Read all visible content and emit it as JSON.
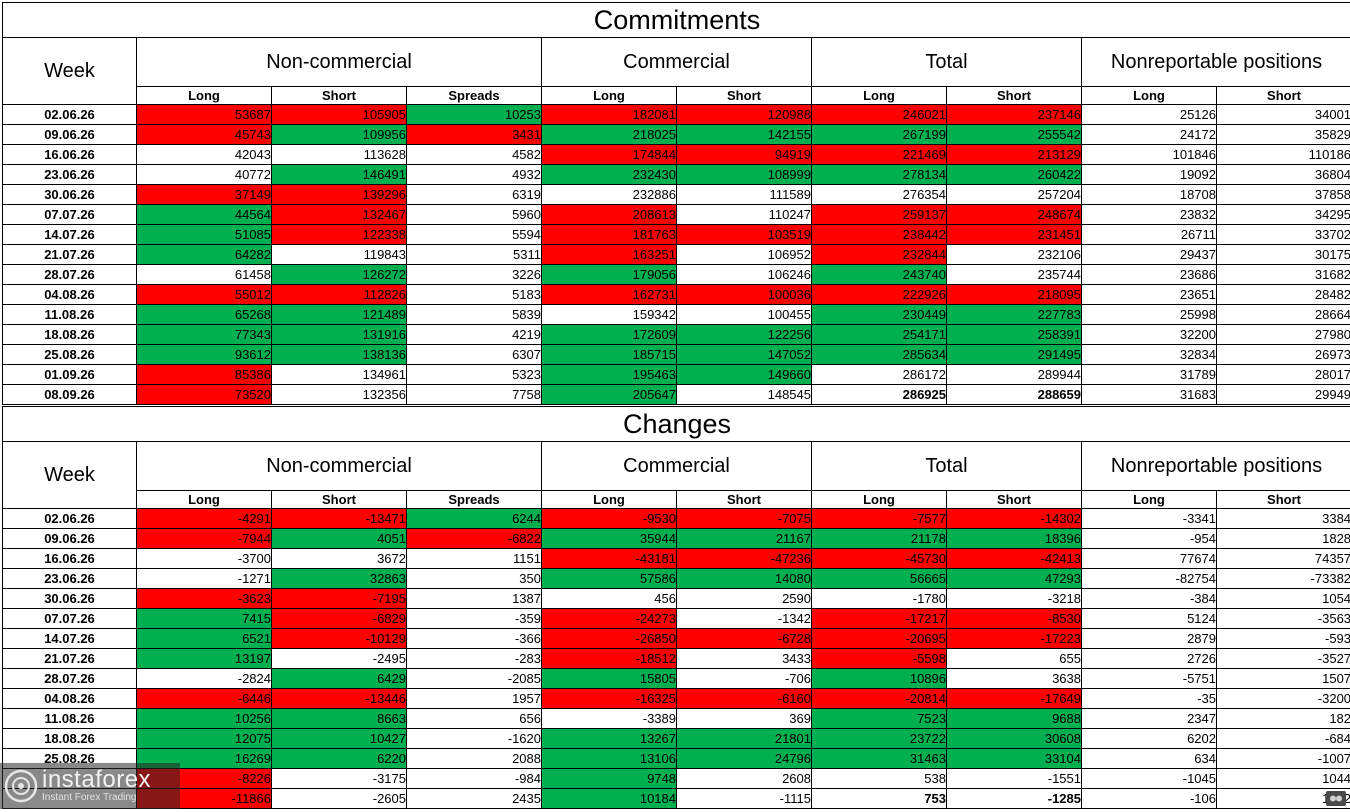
{
  "groups": [
    "Non-commercial",
    "Commercial",
    "Total",
    "Nonreportable positions"
  ],
  "labels": {
    "week": "Week",
    "long": "Long",
    "short": "Short",
    "spreads": "Spreads"
  },
  "colors": {
    "up": "#00b050",
    "down": "#ff0000",
    "none": "#ffffff"
  },
  "watermark": {
    "name": "instaforex",
    "tagline": "Instant Forex Trading"
  },
  "commitments": {
    "title": "Commitments",
    "rows": [
      {
        "week": "02.06.26",
        "values": [
          53687,
          105905,
          10253,
          182081,
          120988,
          246021,
          237146,
          25126,
          34001
        ],
        "colors": [
          "r",
          "r",
          "g",
          "r",
          "r",
          "r",
          "r",
          "n",
          "n"
        ]
      },
      {
        "week": "09.06.26",
        "values": [
          45743,
          109956,
          3431,
          218025,
          142155,
          267199,
          255542,
          24172,
          35829
        ],
        "colors": [
          "r",
          "g",
          "r",
          "g",
          "g",
          "g",
          "g",
          "n",
          "n"
        ]
      },
      {
        "week": "16.06.26",
        "values": [
          42043,
          113628,
          4582,
          174844,
          94919,
          221469,
          213129,
          101846,
          110186
        ],
        "colors": [
          "n",
          "n",
          "n",
          "r",
          "r",
          "r",
          "r",
          "n",
          "n"
        ]
      },
      {
        "week": "23.06.26",
        "values": [
          40772,
          146491,
          4932,
          232430,
          108999,
          278134,
          260422,
          19092,
          36804
        ],
        "colors": [
          "n",
          "g",
          "n",
          "g",
          "g",
          "g",
          "g",
          "n",
          "n"
        ]
      },
      {
        "week": "30.06.26",
        "values": [
          37149,
          139296,
          6319,
          232886,
          111589,
          276354,
          257204,
          18708,
          37858
        ],
        "colors": [
          "r",
          "r",
          "n",
          "n",
          "n",
          "n",
          "n",
          "n",
          "n"
        ]
      },
      {
        "week": "07.07.26",
        "values": [
          44564,
          132467,
          5960,
          208613,
          110247,
          259137,
          248674,
          23832,
          34295
        ],
        "colors": [
          "g",
          "r",
          "n",
          "r",
          "n",
          "r",
          "r",
          "n",
          "n"
        ]
      },
      {
        "week": "14.07.26",
        "values": [
          51085,
          122338,
          5594,
          181763,
          103519,
          238442,
          231451,
          26711,
          33702
        ],
        "colors": [
          "g",
          "r",
          "n",
          "r",
          "r",
          "r",
          "r",
          "n",
          "n"
        ]
      },
      {
        "week": "21.07.26",
        "values": [
          64282,
          119843,
          5311,
          163251,
          106952,
          232844,
          232106,
          29437,
          30175
        ],
        "colors": [
          "g",
          "n",
          "n",
          "r",
          "n",
          "r",
          "n",
          "n",
          "n"
        ]
      },
      {
        "week": "28.07.26",
        "values": [
          61458,
          126272,
          3226,
          179056,
          106246,
          243740,
          235744,
          23686,
          31682
        ],
        "colors": [
          "n",
          "g",
          "n",
          "g",
          "n",
          "g",
          "n",
          "n",
          "n"
        ]
      },
      {
        "week": "04.08.26",
        "values": [
          55012,
          112826,
          5183,
          162731,
          100036,
          222926,
          218095,
          23651,
          28482
        ],
        "colors": [
          "r",
          "r",
          "n",
          "r",
          "r",
          "r",
          "r",
          "n",
          "n"
        ]
      },
      {
        "week": "11.08.26",
        "values": [
          65268,
          121489,
          5839,
          159342,
          100455,
          230449,
          227783,
          25998,
          28664
        ],
        "colors": [
          "g",
          "g",
          "n",
          "n",
          "n",
          "g",
          "g",
          "n",
          "n"
        ]
      },
      {
        "week": "18.08.26",
        "values": [
          77343,
          131916,
          4219,
          172609,
          122256,
          254171,
          258391,
          32200,
          27980
        ],
        "colors": [
          "g",
          "g",
          "n",
          "g",
          "g",
          "g",
          "g",
          "n",
          "n"
        ]
      },
      {
        "week": "25.08.26",
        "values": [
          93612,
          138136,
          6307,
          185715,
          147052,
          285634,
          291495,
          32834,
          26973
        ],
        "colors": [
          "g",
          "g",
          "n",
          "g",
          "g",
          "g",
          "g",
          "n",
          "n"
        ]
      },
      {
        "week": "01.09.26",
        "values": [
          85386,
          134961,
          5323,
          195463,
          149660,
          286172,
          289944,
          31789,
          28017
        ],
        "colors": [
          "r",
          "n",
          "n",
          "g",
          "g",
          "n",
          "n",
          "n",
          "n"
        ]
      },
      {
        "week": "08.09.26",
        "values": [
          73520,
          132356,
          7758,
          205647,
          148545,
          286925,
          288659,
          31683,
          29949
        ],
        "colors": [
          "r",
          "n",
          "n",
          "g",
          "n",
          "b",
          "b",
          "n",
          "n"
        ]
      }
    ]
  },
  "changes": {
    "title": "Changes",
    "rows": [
      {
        "week": "02.06.26",
        "values": [
          -4291,
          -13471,
          6244,
          -9530,
          -7075,
          -7577,
          -14302,
          -3341,
          3384
        ],
        "colors": [
          "r",
          "r",
          "g",
          "r",
          "r",
          "r",
          "r",
          "n",
          "n"
        ]
      },
      {
        "week": "09.06.26",
        "values": [
          -7944,
          4051,
          -6822,
          35944,
          21167,
          21178,
          18396,
          -954,
          1828
        ],
        "colors": [
          "r",
          "g",
          "r",
          "g",
          "g",
          "g",
          "g",
          "n",
          "n"
        ]
      },
      {
        "week": "16.06.26",
        "values": [
          -3700,
          3672,
          1151,
          -43181,
          -47236,
          -45730,
          -42413,
          77674,
          74357
        ],
        "colors": [
          "n",
          "n",
          "n",
          "r",
          "r",
          "r",
          "r",
          "n",
          "n"
        ]
      },
      {
        "week": "23.06.26",
        "values": [
          -1271,
          32863,
          350,
          57586,
          14080,
          56665,
          47293,
          -82754,
          -73382
        ],
        "colors": [
          "n",
          "g",
          "n",
          "g",
          "g",
          "g",
          "g",
          "n",
          "n"
        ]
      },
      {
        "week": "30.06.26",
        "values": [
          -3623,
          -7195,
          1387,
          456,
          2590,
          -1780,
          -3218,
          -384,
          1054
        ],
        "colors": [
          "r",
          "r",
          "n",
          "n",
          "n",
          "n",
          "n",
          "n",
          "n"
        ]
      },
      {
        "week": "07.07.26",
        "values": [
          7415,
          -6829,
          -359,
          -24273,
          -1342,
          -17217,
          -8530,
          5124,
          -3563
        ],
        "colors": [
          "g",
          "r",
          "n",
          "r",
          "n",
          "r",
          "r",
          "n",
          "n"
        ]
      },
      {
        "week": "14.07.26",
        "values": [
          6521,
          -10129,
          -366,
          -26850,
          -6728,
          -20695,
          -17223,
          2879,
          -593
        ],
        "colors": [
          "g",
          "r",
          "n",
          "r",
          "r",
          "r",
          "r",
          "n",
          "n"
        ]
      },
      {
        "week": "21.07.26",
        "values": [
          13197,
          -2495,
          -283,
          -18512,
          3433,
          -5598,
          655,
          2726,
          -3527
        ],
        "colors": [
          "g",
          "n",
          "n",
          "r",
          "n",
          "r",
          "n",
          "n",
          "n"
        ]
      },
      {
        "week": "28.07.26",
        "values": [
          -2824,
          6429,
          -2085,
          15805,
          -706,
          10896,
          3638,
          -5751,
          1507
        ],
        "colors": [
          "n",
          "g",
          "n",
          "g",
          "n",
          "g",
          "n",
          "n",
          "n"
        ]
      },
      {
        "week": "04.08.26",
        "values": [
          -6446,
          -13446,
          1957,
          -16325,
          -6160,
          -20814,
          -17649,
          -35,
          -3200
        ],
        "colors": [
          "r",
          "r",
          "n",
          "r",
          "r",
          "r",
          "r",
          "n",
          "n"
        ]
      },
      {
        "week": "11.08.26",
        "values": [
          10256,
          8663,
          656,
          -3389,
          369,
          7523,
          9688,
          2347,
          182
        ],
        "colors": [
          "g",
          "g",
          "n",
          "n",
          "n",
          "g",
          "g",
          "n",
          "n"
        ]
      },
      {
        "week": "18.08.26",
        "values": [
          12075,
          10427,
          -1620,
          13267,
          21801,
          23722,
          30608,
          6202,
          -684
        ],
        "colors": [
          "g",
          "g",
          "n",
          "g",
          "g",
          "g",
          "g",
          "n",
          "n"
        ]
      },
      {
        "week": "25.08.26",
        "values": [
          16269,
          6220,
          2088,
          13106,
          24796,
          31463,
          33104,
          634,
          -1007
        ],
        "colors": [
          "g",
          "g",
          "n",
          "g",
          "g",
          "g",
          "g",
          "n",
          "n"
        ]
      },
      {
        "week": "",
        "values": [
          -8226,
          -3175,
          -984,
          9748,
          2608,
          538,
          -1551,
          -1045,
          1044
        ],
        "colors": [
          "r",
          "n",
          "n",
          "g",
          "n",
          "n",
          "n",
          "n",
          "n"
        ]
      },
      {
        "week": "",
        "values": [
          -11866,
          -2605,
          2435,
          10184,
          -1115,
          753,
          -1285,
          -106,
          1932
        ],
        "colors": [
          "r",
          "n",
          "n",
          "g",
          "n",
          "b",
          "b",
          "n",
          "n"
        ]
      }
    ]
  }
}
